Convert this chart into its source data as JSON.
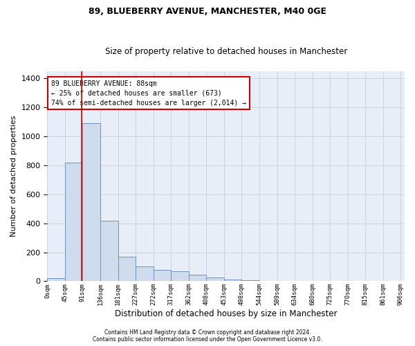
{
  "title1": "89, BLUEBERRY AVENUE, MANCHESTER, M40 0GE",
  "title2": "Size of property relative to detached houses in Manchester",
  "xlabel": "Distribution of detached houses by size in Manchester",
  "ylabel": "Number of detached properties",
  "footnote1": "Contains HM Land Registry data © Crown copyright and database right 2024.",
  "footnote2": "Contains public sector information licensed under the Open Government Licence v3.0.",
  "annotation_line1": "89 BLUEBERRY AVENUE: 88sqm",
  "annotation_line2": "← 25% of detached houses are smaller (673)",
  "annotation_line3": "74% of semi-detached houses are larger (2,014) →",
  "bar_color": "#cfdcee",
  "bar_edge_color": "#7090c0",
  "property_line_color": "#cc0000",
  "property_line_x": 88,
  "bin_width": 45,
  "num_bins": 20,
  "bar_heights": [
    20,
    820,
    1090,
    420,
    170,
    100,
    80,
    70,
    45,
    25,
    10,
    5,
    2,
    1,
    1,
    0,
    0,
    0,
    0,
    0
  ],
  "ylim": [
    0,
    1450
  ],
  "yticks": [
    0,
    200,
    400,
    600,
    800,
    1000,
    1200,
    1400
  ],
  "xlim_left": 0,
  "xlim_right": 910,
  "xtick_labels": [
    "0sqm",
    "45sqm",
    "91sqm",
    "136sqm",
    "181sqm",
    "227sqm",
    "272sqm",
    "317sqm",
    "362sqm",
    "408sqm",
    "453sqm",
    "498sqm",
    "544sqm",
    "589sqm",
    "634sqm",
    "680sqm",
    "725sqm",
    "770sqm",
    "815sqm",
    "861sqm",
    "906sqm"
  ],
  "grid_color": "#c8d4e8",
  "background_color": "#e8eef8",
  "annotation_box_facecolor": "#ffffff",
  "annotation_box_edgecolor": "#cc0000",
  "title1_fontsize": 9,
  "title2_fontsize": 8.5,
  "ylabel_fontsize": 8,
  "xlabel_fontsize": 8.5,
  "ytick_fontsize": 8,
  "xtick_fontsize": 6.5,
  "annotation_fontsize": 7,
  "footnote_fontsize": 5.5
}
